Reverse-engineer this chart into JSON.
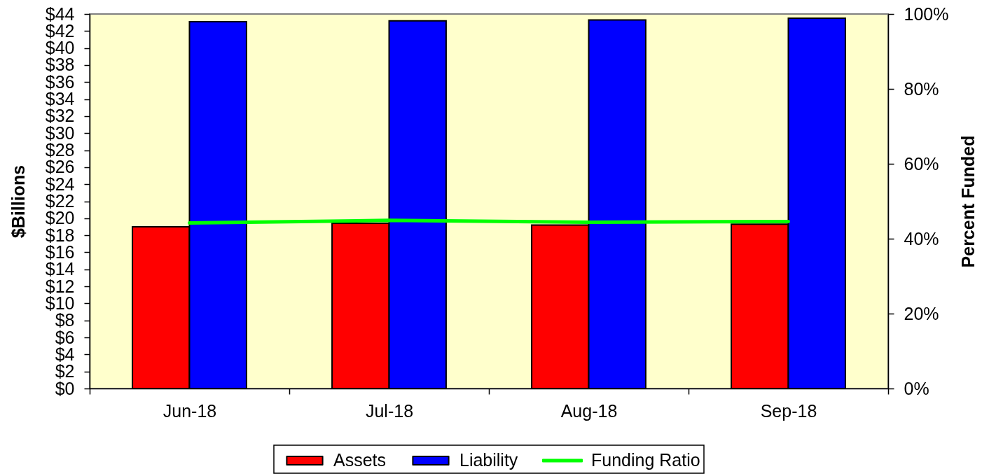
{
  "chart_data": {
    "type": "bar",
    "categories": [
      "Jun-18",
      "Jul-18",
      "Aug-18",
      "Sep-18"
    ],
    "ylabel": "$Billions",
    "y2label": "Percent Funded",
    "series": [
      {
        "name": "Assets",
        "color": "#ff0000",
        "values": [
          19.0,
          19.4,
          19.2,
          19.3
        ]
      },
      {
        "name": "Liability",
        "color": "#0000ff",
        "values": [
          43.1,
          43.2,
          43.3,
          43.5
        ]
      },
      {
        "name": "Funding Ratio",
        "type": "line",
        "axis": "y2",
        "color": "#00ff00",
        "values": [
          44.2,
          44.9,
          44.4,
          44.6
        ]
      }
    ],
    "ylim": [
      0,
      44
    ],
    "yticks": [
      {
        "value": 0,
        "label": "$0"
      },
      {
        "value": 2,
        "label": "$2"
      },
      {
        "value": 4,
        "label": "$4"
      },
      {
        "value": 6,
        "label": "$6"
      },
      {
        "value": 8,
        "label": "$8"
      },
      {
        "value": 10,
        "label": "$10"
      },
      {
        "value": 12,
        "label": "$12"
      },
      {
        "value": 14,
        "label": "$14"
      },
      {
        "value": 16,
        "label": "$16"
      },
      {
        "value": 18,
        "label": "$18"
      },
      {
        "value": 20,
        "label": "$20"
      },
      {
        "value": 22,
        "label": "$22"
      },
      {
        "value": 24,
        "label": "$24"
      },
      {
        "value": 26,
        "label": "$26"
      },
      {
        "value": 28,
        "label": "$28"
      },
      {
        "value": 30,
        "label": "$30"
      },
      {
        "value": 32,
        "label": "$32"
      },
      {
        "value": 34,
        "label": "$34"
      },
      {
        "value": 36,
        "label": "$36"
      },
      {
        "value": 38,
        "label": "$38"
      },
      {
        "value": 40,
        "label": "$40"
      },
      {
        "value": 42,
        "label": "$42"
      },
      {
        "value": 44,
        "label": "$44"
      }
    ],
    "y2lim": [
      0,
      100
    ],
    "y2ticks": [
      {
        "value": 0,
        "label": "0%"
      },
      {
        "value": 20,
        "label": "20%"
      },
      {
        "value": 40,
        "label": "40%"
      },
      {
        "value": 60,
        "label": "60%"
      },
      {
        "value": 80,
        "label": "80%"
      },
      {
        "value": 100,
        "label": "100%"
      }
    ],
    "legend": "bottom"
  }
}
